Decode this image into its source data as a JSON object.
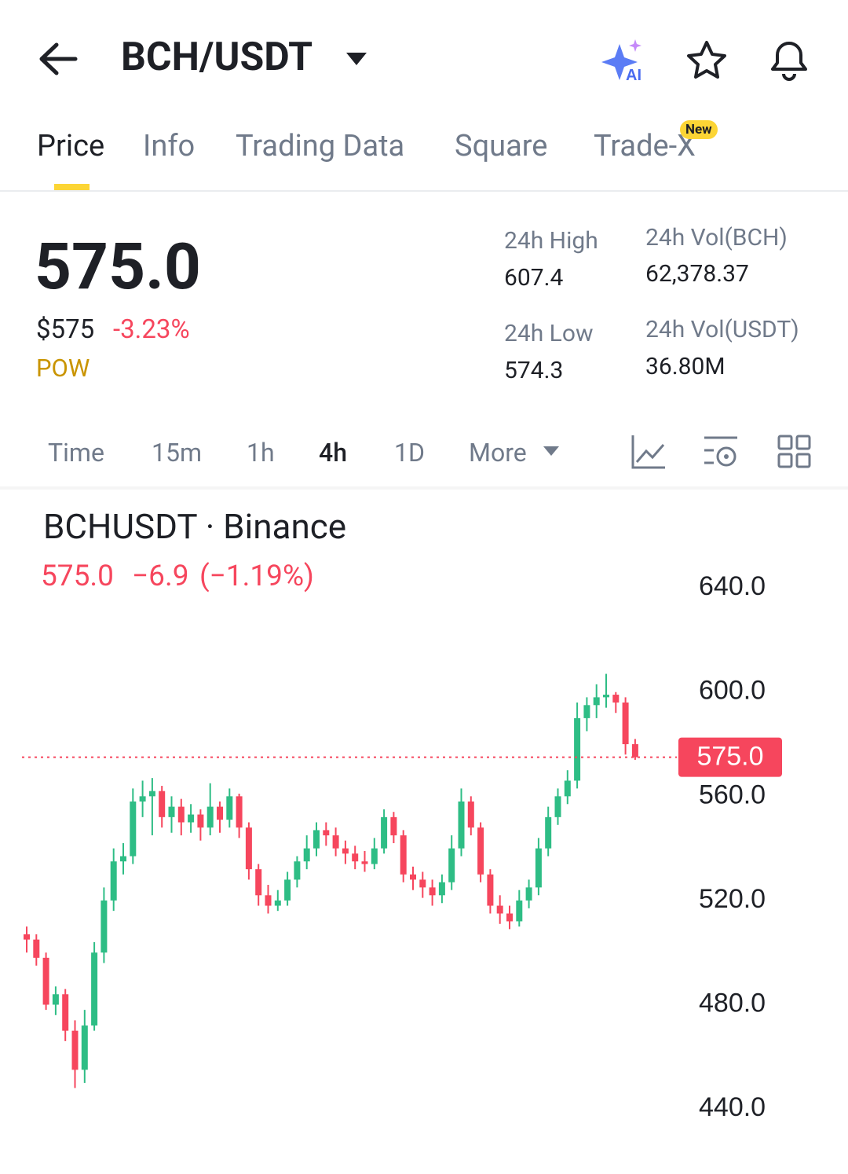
{
  "header": {
    "pair": "BCH/USDT"
  },
  "tabs": {
    "items": [
      "Price",
      "Info",
      "Trading Data",
      "Square",
      "Trade-X"
    ],
    "badge": "New"
  },
  "price": {
    "last": "575.0",
    "usd": "$575",
    "change": "-3.23%",
    "tag": "POW"
  },
  "stats": [
    {
      "label": "24h High",
      "value": "607.4"
    },
    {
      "label": "24h Vol(BCH)",
      "value": "62,378.37"
    },
    {
      "label": "24h Low",
      "value": "574.3"
    },
    {
      "label": "24h Vol(USDT)",
      "value": "36.80M"
    }
  ],
  "intervals": {
    "items": [
      "Time",
      "15m",
      "1h",
      "4h",
      "1D",
      "More"
    ]
  },
  "chart_data": {
    "type": "candlestick",
    "title": "BCHUSDT · Binance",
    "subtitle": {
      "price": "575.0",
      "change": "−6.9",
      "percent": "(−1.19%)"
    },
    "up_color": "#2ebd85",
    "down_color": "#f6465d",
    "ylim": [
      434,
      650
    ],
    "yticks": [
      {
        "value": 640,
        "label": "640.0"
      },
      {
        "value": 600,
        "label": "600.0"
      },
      {
        "value": 560,
        "label": "560.0"
      },
      {
        "value": 520,
        "label": "520.0"
      },
      {
        "value": 480,
        "label": "480.0"
      },
      {
        "value": 440,
        "label": "440.0"
      }
    ],
    "last_price": {
      "value": 575,
      "label": "575.0"
    },
    "candles": [
      [
        507,
        510,
        500,
        505
      ],
      [
        505,
        507,
        495,
        498
      ],
      [
        498,
        500,
        478,
        480
      ],
      [
        480,
        487,
        476,
        484
      ],
      [
        484,
        486,
        466,
        470
      ],
      [
        470,
        474,
        448,
        455
      ],
      [
        455,
        478,
        450,
        472
      ],
      [
        472,
        504,
        470,
        500
      ],
      [
        500,
        525,
        496,
        520
      ],
      [
        520,
        540,
        516,
        535
      ],
      [
        535,
        542,
        530,
        537
      ],
      [
        537,
        563,
        534,
        558
      ],
      [
        558,
        566,
        552,
        560
      ],
      [
        560,
        567,
        545,
        562
      ],
      [
        562,
        564,
        548,
        552
      ],
      [
        552,
        560,
        546,
        556
      ],
      [
        556,
        559,
        545,
        550
      ],
      [
        550,
        557,
        546,
        553
      ],
      [
        553,
        555,
        543,
        548
      ],
      [
        548,
        565,
        545,
        556
      ],
      [
        556,
        558,
        546,
        551
      ],
      [
        551,
        563,
        548,
        560
      ],
      [
        560,
        561,
        544,
        548
      ],
      [
        548,
        550,
        528,
        532
      ],
      [
        532,
        534,
        518,
        522
      ],
      [
        522,
        526,
        515,
        518
      ],
      [
        518,
        524,
        516,
        520
      ],
      [
        520,
        531,
        518,
        528
      ],
      [
        528,
        537,
        525,
        535
      ],
      [
        535,
        545,
        532,
        540
      ],
      [
        540,
        550,
        537,
        547
      ],
      [
        547,
        550,
        541,
        545
      ],
      [
        545,
        548,
        537,
        540
      ],
      [
        540,
        543,
        534,
        538
      ],
      [
        538,
        541,
        532,
        535
      ],
      [
        535,
        539,
        531,
        534
      ],
      [
        534,
        544,
        532,
        540
      ],
      [
        540,
        555,
        538,
        552
      ],
      [
        552,
        554,
        542,
        545
      ],
      [
        545,
        547,
        527,
        530
      ],
      [
        530,
        533,
        524,
        528
      ],
      [
        528,
        531,
        521,
        525
      ],
      [
        525,
        528,
        518,
        522
      ],
      [
        522,
        530,
        519,
        527
      ],
      [
        527,
        545,
        524,
        540
      ],
      [
        540,
        563,
        537,
        558
      ],
      [
        558,
        560,
        545,
        548
      ],
      [
        548,
        550,
        527,
        530
      ],
      [
        530,
        532,
        515,
        518
      ],
      [
        518,
        522,
        511,
        515
      ],
      [
        515,
        518,
        509,
        512
      ],
      [
        512,
        524,
        510,
        520
      ],
      [
        520,
        528,
        517,
        525
      ],
      [
        525,
        544,
        522,
        540
      ],
      [
        540,
        556,
        537,
        552
      ],
      [
        552,
        563,
        549,
        560
      ],
      [
        560,
        570,
        557,
        566
      ],
      [
        566,
        596,
        563,
        590
      ],
      [
        590,
        598,
        585,
        595
      ],
      [
        595,
        603,
        590,
        598
      ],
      [
        598,
        607,
        594,
        599
      ],
      [
        599,
        600,
        592,
        596
      ],
      [
        596,
        598,
        576,
        580
      ],
      [
        580,
        582,
        574,
        575
      ]
    ]
  }
}
